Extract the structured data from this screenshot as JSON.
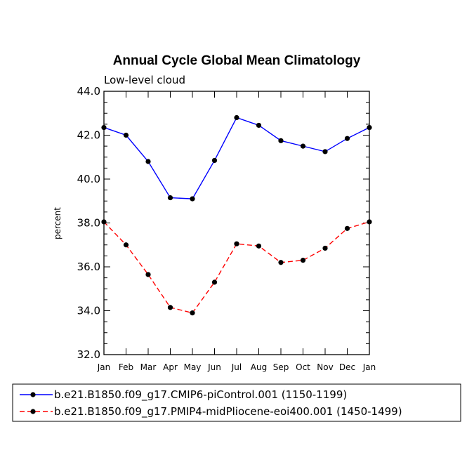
{
  "chart_data": {
    "type": "line",
    "title": "Annual Cycle Global Mean Climatology",
    "subtitle": "Low-level cloud",
    "xlabel": "",
    "ylabel": "percent",
    "categories": [
      "Jan",
      "Feb",
      "Mar",
      "Apr",
      "May",
      "Jun",
      "Jul",
      "Aug",
      "Sep",
      "Oct",
      "Nov",
      "Dec",
      "Jan"
    ],
    "ylim": [
      32.0,
      44.0
    ],
    "yticks": [
      "32.0",
      "34.0",
      "36.0",
      "38.0",
      "40.0",
      "42.0",
      "44.0"
    ],
    "grid": false,
    "legend_position": "bottom",
    "series": [
      {
        "name": "b.e21.B1850.f09_g17.CMIP6-piControl.001 (1150-1199)",
        "color": "#0000ff",
        "dash": "solid",
        "values": [
          42.35,
          42.0,
          40.8,
          39.15,
          39.1,
          40.85,
          42.8,
          42.45,
          41.75,
          41.5,
          41.25,
          41.85,
          42.35
        ]
      },
      {
        "name": "b.e21.B1850.f09_g17.PMIP4-midPliocene-eoi400.001 (1450-1499)",
        "color": "#ff0000",
        "dash": "dashed",
        "values": [
          38.05,
          37.0,
          35.65,
          34.15,
          33.9,
          35.3,
          37.05,
          36.95,
          36.2,
          36.3,
          36.85,
          37.75,
          38.05
        ]
      }
    ]
  }
}
